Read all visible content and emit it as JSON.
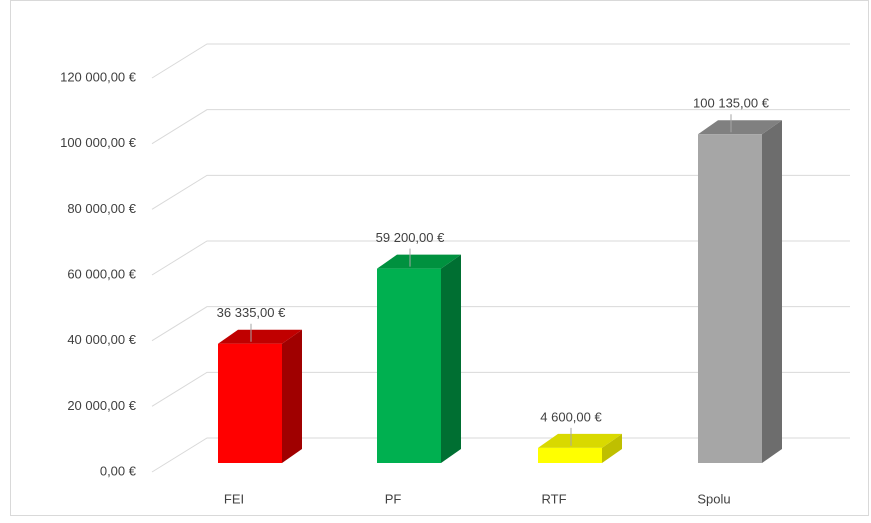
{
  "chart_data": {
    "type": "bar3d",
    "categories": [
      "FEI",
      "PF",
      "RTF",
      "Spolu"
    ],
    "values": [
      36335,
      59200,
      4600,
      100135
    ],
    "value_labels": [
      "36 335,00 €",
      "59 200,00 €",
      "4 600,00 €",
      "100 135,00 €"
    ],
    "colors": [
      "#ff0000",
      "#00b050",
      "#ffff00",
      "#a6a6a6"
    ],
    "side_colors": [
      "#a00000",
      "#006f32",
      "#bfbf00",
      "#6d6d6d"
    ],
    "top_colors": [
      "#c00000",
      "#00913f",
      "#d9d900",
      "#808080"
    ],
    "ylim": [
      0,
      120000
    ],
    "yticks": [
      {
        "value": 0,
        "label": "0,00 €"
      },
      {
        "value": 20000,
        "label": "20 000,00 €"
      },
      {
        "value": 40000,
        "label": "40 000,00 €"
      },
      {
        "value": 60000,
        "label": "60 000,00 €"
      },
      {
        "value": 80000,
        "label": "80 000,00 €"
      },
      {
        "value": 100000,
        "label": "100 000,00 €"
      },
      {
        "value": 120000,
        "label": "120 000,00 €"
      }
    ],
    "grid": true
  }
}
